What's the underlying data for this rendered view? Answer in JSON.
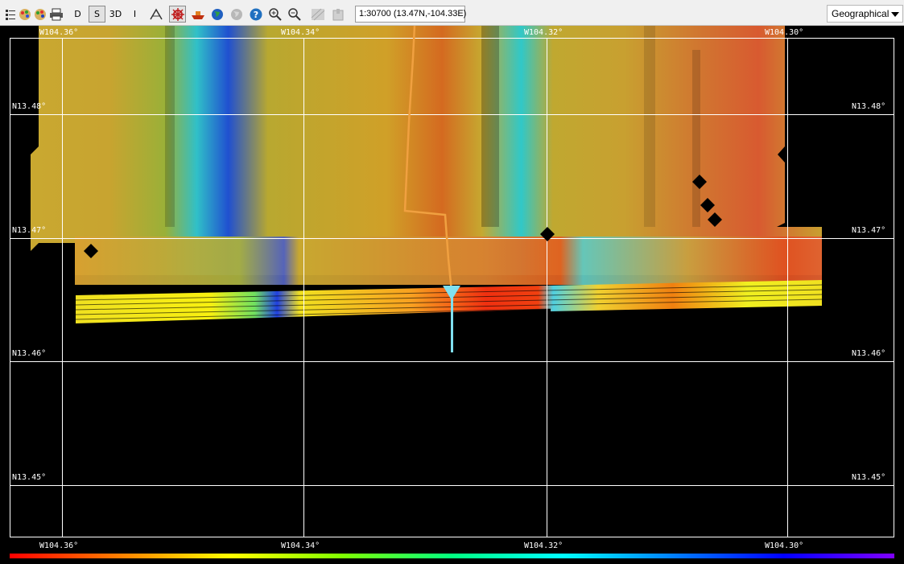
{
  "toolbar": {
    "buttons": [
      {
        "id": "d",
        "label": "D"
      },
      {
        "id": "s",
        "label": "S"
      },
      {
        "id": "3d",
        "label": "3D"
      },
      {
        "id": "i",
        "label": "I"
      }
    ],
    "scale_readout": "1:30700 (13.47N,-104.33E)",
    "projection": "Geographical"
  },
  "map": {
    "lon_labels": [
      "W104.36°",
      "W104.34°",
      "W104.32°",
      "W104.30°"
    ],
    "lat_labels": [
      "N13.48°",
      "N13.47°",
      "N13.46°",
      "N13.45°"
    ]
  },
  "colors": {
    "track": "#f0a040",
    "vessel": "#80e0f0",
    "grid": "#ffffff",
    "background": "#000000"
  }
}
